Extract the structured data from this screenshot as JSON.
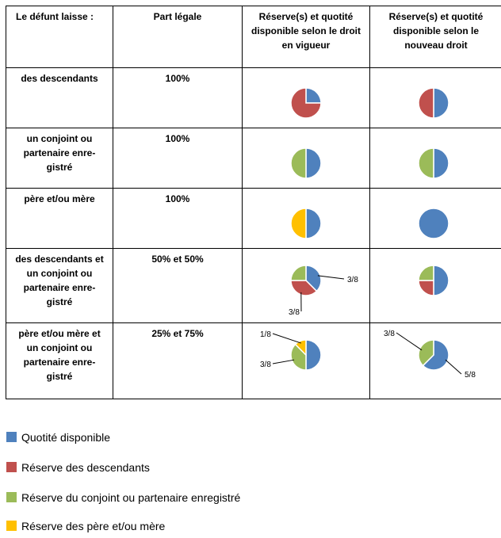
{
  "headers": {
    "col0": "Le défunt laisse :",
    "col1": "Part légale",
    "col2": "Réserve(s) et quotité disponible selon le droit en vigueur",
    "col3": "Réserve(s) et quotité disponible selon le nouveau droit"
  },
  "colors": {
    "quotite": "#4f81bd",
    "descendants": "#c0504d",
    "conjoint": "#9bbb59",
    "parents": "#ffc000"
  },
  "rows": [
    {
      "label": "des descendants",
      "share": "100%"
    },
    {
      "label": "un conjoint ou partenaire enre-gistré",
      "share": "100%"
    },
    {
      "label": "père et/ou mère",
      "share": "100%"
    },
    {
      "label": "des descendants et un conjoint ou partenaire enre-gistré",
      "share": "50% et 50%"
    },
    {
      "label": "père et/ou mère et un conjoint ou partenaire enre-gistré",
      "share": "25% et 75%"
    }
  ],
  "legend": [
    {
      "key": "quotite",
      "label": "Quotité disponible"
    },
    {
      "key": "descendants",
      "label": "Réserve des descendants"
    },
    {
      "key": "conjoint",
      "label": "Réserve du conjoint ou partenaire enregistré"
    },
    {
      "key": "parents",
      "label": "Réserve des père et/ou mère"
    }
  ],
  "chart_data": [
    {
      "type": "pie",
      "title": "des descendants — droit en vigueur",
      "slices": [
        {
          "key": "quotite",
          "value": 0.25
        },
        {
          "key": "descendants",
          "value": 0.75
        }
      ]
    },
    {
      "type": "pie",
      "title": "des descendants — nouveau droit",
      "slices": [
        {
          "key": "quotite",
          "value": 0.5
        },
        {
          "key": "descendants",
          "value": 0.5
        }
      ]
    },
    {
      "type": "pie",
      "title": "conjoint — droit en vigueur",
      "slices": [
        {
          "key": "quotite",
          "value": 0.5
        },
        {
          "key": "conjoint",
          "value": 0.5
        }
      ]
    },
    {
      "type": "pie",
      "title": "conjoint — nouveau droit",
      "slices": [
        {
          "key": "quotite",
          "value": 0.5
        },
        {
          "key": "conjoint",
          "value": 0.5
        }
      ]
    },
    {
      "type": "pie",
      "title": "père et/ou mère — droit en vigueur",
      "slices": [
        {
          "key": "quotite",
          "value": 0.5
        },
        {
          "key": "parents",
          "value": 0.5
        }
      ]
    },
    {
      "type": "pie",
      "title": "père et/ou mère — nouveau droit",
      "slices": [
        {
          "key": "quotite",
          "value": 1.0
        }
      ]
    },
    {
      "type": "pie",
      "title": "descendants et conjoint — droit en vigueur",
      "slices": [
        {
          "key": "quotite",
          "value": 0.375,
          "label": "3/8"
        },
        {
          "key": "descendants",
          "value": 0.375,
          "label": "3/8"
        },
        {
          "key": "conjoint",
          "value": 0.25
        }
      ]
    },
    {
      "type": "pie",
      "title": "descendants et conjoint — nouveau droit",
      "slices": [
        {
          "key": "quotite",
          "value": 0.5
        },
        {
          "key": "descendants",
          "value": 0.25
        },
        {
          "key": "conjoint",
          "value": 0.25
        }
      ]
    },
    {
      "type": "pie",
      "title": "parents et conjoint — droit en vigueur",
      "slices": [
        {
          "key": "quotite",
          "value": 0.5
        },
        {
          "key": "conjoint",
          "value": 0.375,
          "label": "3/8"
        },
        {
          "key": "parents",
          "value": 0.125,
          "label": "1/8"
        }
      ]
    },
    {
      "type": "pie",
      "title": "parents et conjoint — nouveau droit",
      "slices": [
        {
          "key": "quotite",
          "value": 0.625,
          "label": "5/8"
        },
        {
          "key": "conjoint",
          "value": 0.375,
          "label": "3/8"
        }
      ]
    }
  ]
}
